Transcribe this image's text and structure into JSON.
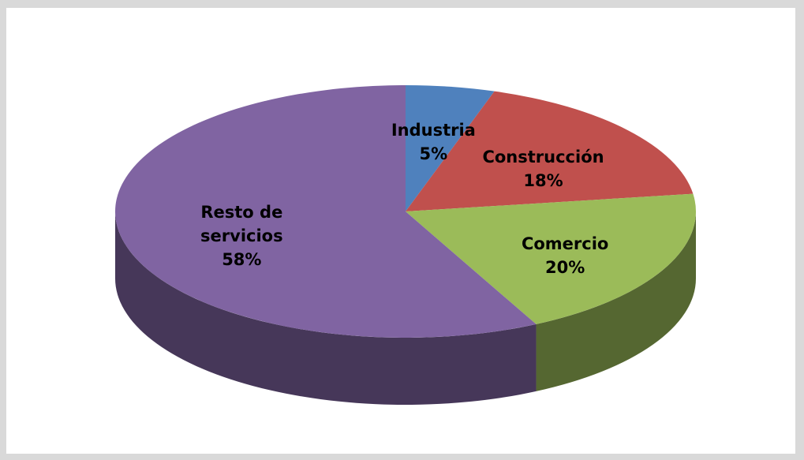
{
  "chart_data": {
    "type": "pie",
    "categories": [
      "Industria",
      "Construcción",
      "Comercio",
      "Resto de servicios"
    ],
    "values": [
      5,
      18,
      20,
      58
    ],
    "value_labels": [
      "5%",
      "18%",
      "20%",
      "58%"
    ],
    "colors": [
      "#4f81bd",
      "#c0504d",
      "#9bbb59",
      "#8064a2"
    ]
  }
}
